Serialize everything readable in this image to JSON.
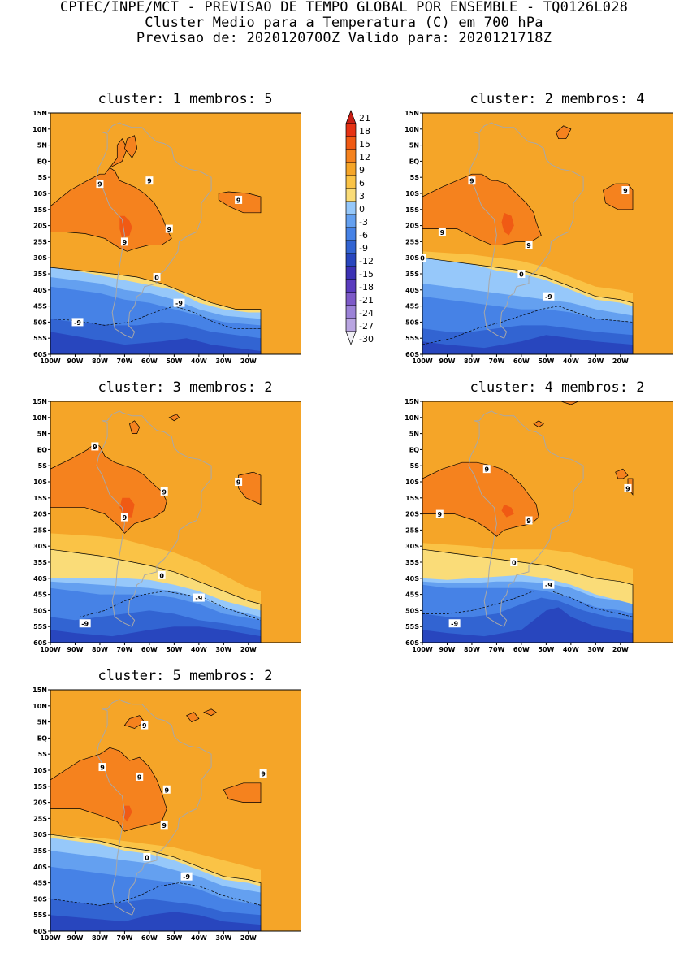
{
  "header": {
    "line1": "CPTEC/INPE/MCT - PREVISAO DE TEMPO GLOBAL POR ENSEMBLE - TQ0126L028",
    "line2": "Cluster Medio para a Temperatura (C) em 700 hPa",
    "line3": "Previsao de: 2020120700Z   Valido para: 2020121718Z"
  },
  "lat_ticks": [
    "15N",
    "10N",
    "5N",
    "EQ",
    "5S",
    "10S",
    "15S",
    "20S",
    "25S",
    "30S",
    "35S",
    "40S",
    "45S",
    "50S",
    "55S",
    "60S"
  ],
  "lon_ticks": [
    "100W",
    "90W",
    "80W",
    "70W",
    "60W",
    "50W",
    "40W",
    "30W",
    "20W"
  ],
  "colorbar": {
    "labels": [
      "21",
      "18",
      "15",
      "12",
      "9",
      "6",
      "3",
      "0",
      "-3",
      "-6",
      "-9",
      "-12",
      "-15",
      "-18",
      "-21",
      "-24",
      "-27",
      "-30"
    ],
    "colors": [
      "#c81e14",
      "#e63214",
      "#f05a14",
      "#f5821e",
      "#f5a528",
      "#fac346",
      "#fadc78",
      "#96c8fa",
      "#64a0f0",
      "#4682e6",
      "#3264d2",
      "#2846be",
      "#3c32b4",
      "#5a3cbe",
      "#7d5ac8",
      "#9b82d7",
      "#b9a5e1",
      "#f0f0f5"
    ]
  },
  "panels": [
    {
      "title": "cluster: 1   membros: 5",
      "labels": [
        {
          "t": "9",
          "lon": -80,
          "lat": -7
        },
        {
          "t": "9",
          "lon": -60,
          "lat": -6
        },
        {
          "t": "9",
          "lon": -70,
          "lat": -25
        },
        {
          "t": "9",
          "lon": -52,
          "lat": -21
        },
        {
          "t": "9",
          "lon": -24,
          "lat": -12
        },
        {
          "t": "0",
          "lon": -57,
          "lat": -36
        },
        {
          "t": "-9",
          "lon": -48,
          "lat": -44
        },
        {
          "t": "-9",
          "lon": -89,
          "lat": -50
        }
      ]
    },
    {
      "title": "cluster: 2   membros: 4",
      "labels": [
        {
          "t": "9",
          "lon": -80,
          "lat": -6
        },
        {
          "t": "9",
          "lon": -92,
          "lat": -22
        },
        {
          "t": "9",
          "lon": -57,
          "lat": -26
        },
        {
          "t": "9",
          "lon": -18,
          "lat": -9
        },
        {
          "t": "0",
          "lon": -100,
          "lat": -30
        },
        {
          "t": "0",
          "lon": -60,
          "lat": -35
        },
        {
          "t": "-9",
          "lon": -49,
          "lat": -42
        }
      ]
    },
    {
      "title": "cluster: 3   membros: 2",
      "labels": [
        {
          "t": "9",
          "lon": -82,
          "lat": 1
        },
        {
          "t": "9",
          "lon": -54,
          "lat": -13
        },
        {
          "t": "9",
          "lon": -70,
          "lat": -21
        },
        {
          "t": "9",
          "lon": -24,
          "lat": -10
        },
        {
          "t": "0",
          "lon": -55,
          "lat": -39
        },
        {
          "t": "-9",
          "lon": -40,
          "lat": -46
        },
        {
          "t": "-9",
          "lon": -86,
          "lat": -54
        }
      ]
    },
    {
      "title": "cluster: 4   membros: 2",
      "labels": [
        {
          "t": "9",
          "lon": -74,
          "lat": -6
        },
        {
          "t": "9",
          "lon": -93,
          "lat": -20
        },
        {
          "t": "9",
          "lon": -57,
          "lat": -22
        },
        {
          "t": "9",
          "lon": -17,
          "lat": -12
        },
        {
          "t": "0",
          "lon": -63,
          "lat": -35
        },
        {
          "t": "-9",
          "lon": -49,
          "lat": -42
        },
        {
          "t": "-9",
          "lon": -87,
          "lat": -54
        }
      ]
    },
    {
      "title": "cluster: 5   membros: 2",
      "labels": [
        {
          "t": "9",
          "lon": -62,
          "lat": 4
        },
        {
          "t": "9",
          "lon": -79,
          "lat": -9
        },
        {
          "t": "9",
          "lon": -64,
          "lat": -12
        },
        {
          "t": "9",
          "lon": -53,
          "lat": -16
        },
        {
          "t": "9",
          "lon": -54,
          "lat": -27
        },
        {
          "t": "9",
          "lon": -14,
          "lat": -11
        },
        {
          "t": "0",
          "lon": -61,
          "lat": -37
        },
        {
          "t": "-9",
          "lon": -45,
          "lat": -43
        }
      ]
    }
  ]
}
